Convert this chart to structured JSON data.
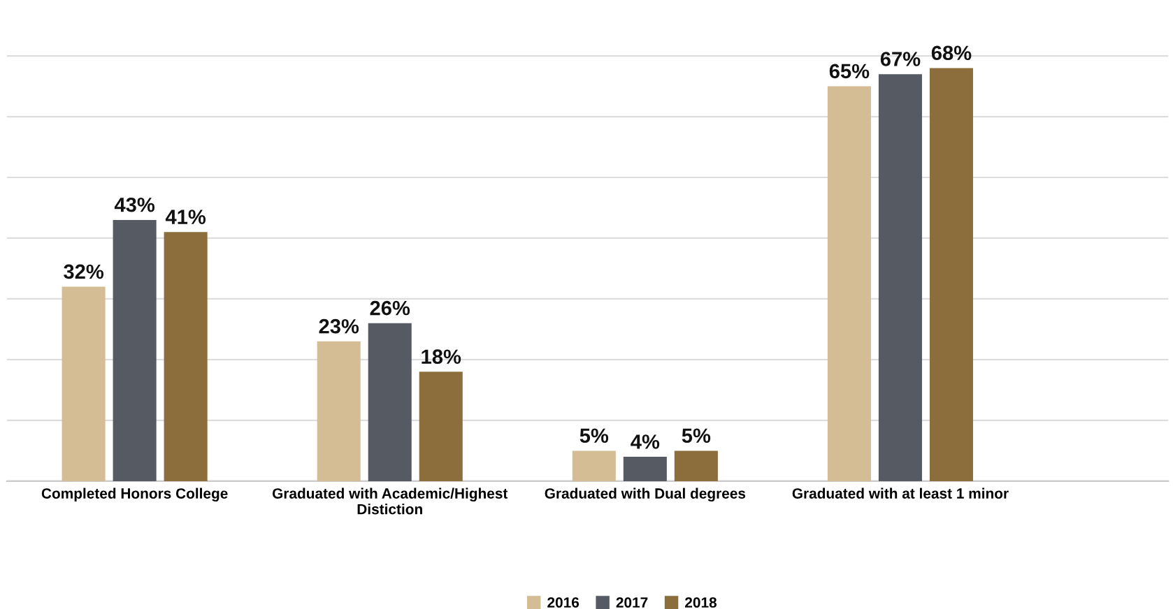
{
  "chart_data": {
    "type": "bar",
    "categories": [
      "Completed Honors College",
      "Graduated with Academic/Highest\nDistiction",
      "Graduated with Dual degrees",
      "Graduated with at least 1 minor"
    ],
    "series": [
      {
        "name": "2016",
        "color": "#d4bc94",
        "values": [
          32,
          23,
          5,
          65
        ],
        "value_labels": [
          "32%",
          "23%",
          "5%",
          "65%"
        ]
      },
      {
        "name": "2017",
        "color": "#565a62",
        "values": [
          43,
          26,
          4,
          67
        ],
        "value_labels": [
          "43%",
          "26%",
          "4%",
          "67%"
        ]
      },
      {
        "name": "2018",
        "color": "#8c6d3c",
        "values": [
          41,
          18,
          5,
          68
        ],
        "value_labels": [
          "41%",
          "18%",
          "5%",
          "68%"
        ]
      }
    ],
    "tick_labels": "x",
    "grid": "y",
    "legend": "bottom"
  }
}
